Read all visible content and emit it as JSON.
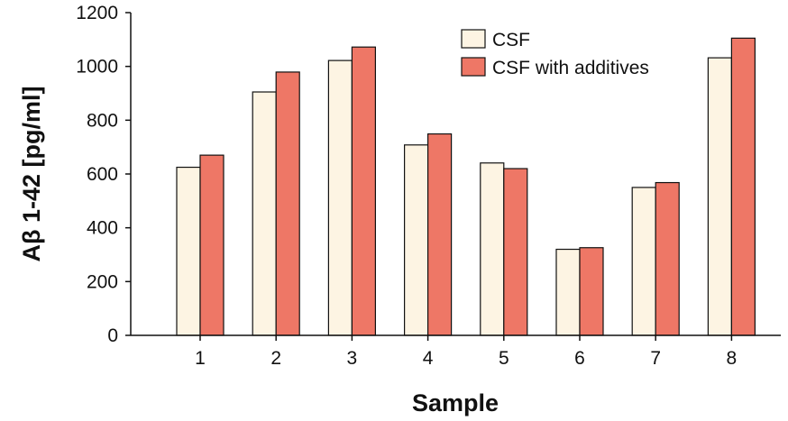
{
  "chart_data": {
    "type": "bar",
    "title": "",
    "xlabel": "Sample",
    "ylabel": "Aβ 1-42 [pg/ml]",
    "categories": [
      "1",
      "2",
      "3",
      "4",
      "5",
      "6",
      "7",
      "8"
    ],
    "series": [
      {
        "name": "CSF",
        "color": "#FDF4E3",
        "values": [
          625,
          905,
          1022,
          708,
          641,
          320,
          550,
          1032
        ]
      },
      {
        "name": "CSF with additives",
        "color": "#EE7766",
        "values": [
          670,
          979,
          1072,
          749,
          620,
          326,
          568,
          1105
        ]
      }
    ],
    "ylim": [
      0,
      1200
    ],
    "yticks": [
      "0",
      "200",
      "400",
      "600",
      "800",
      "1000",
      "1200"
    ],
    "grid": false,
    "legend_position": "top-right"
  }
}
